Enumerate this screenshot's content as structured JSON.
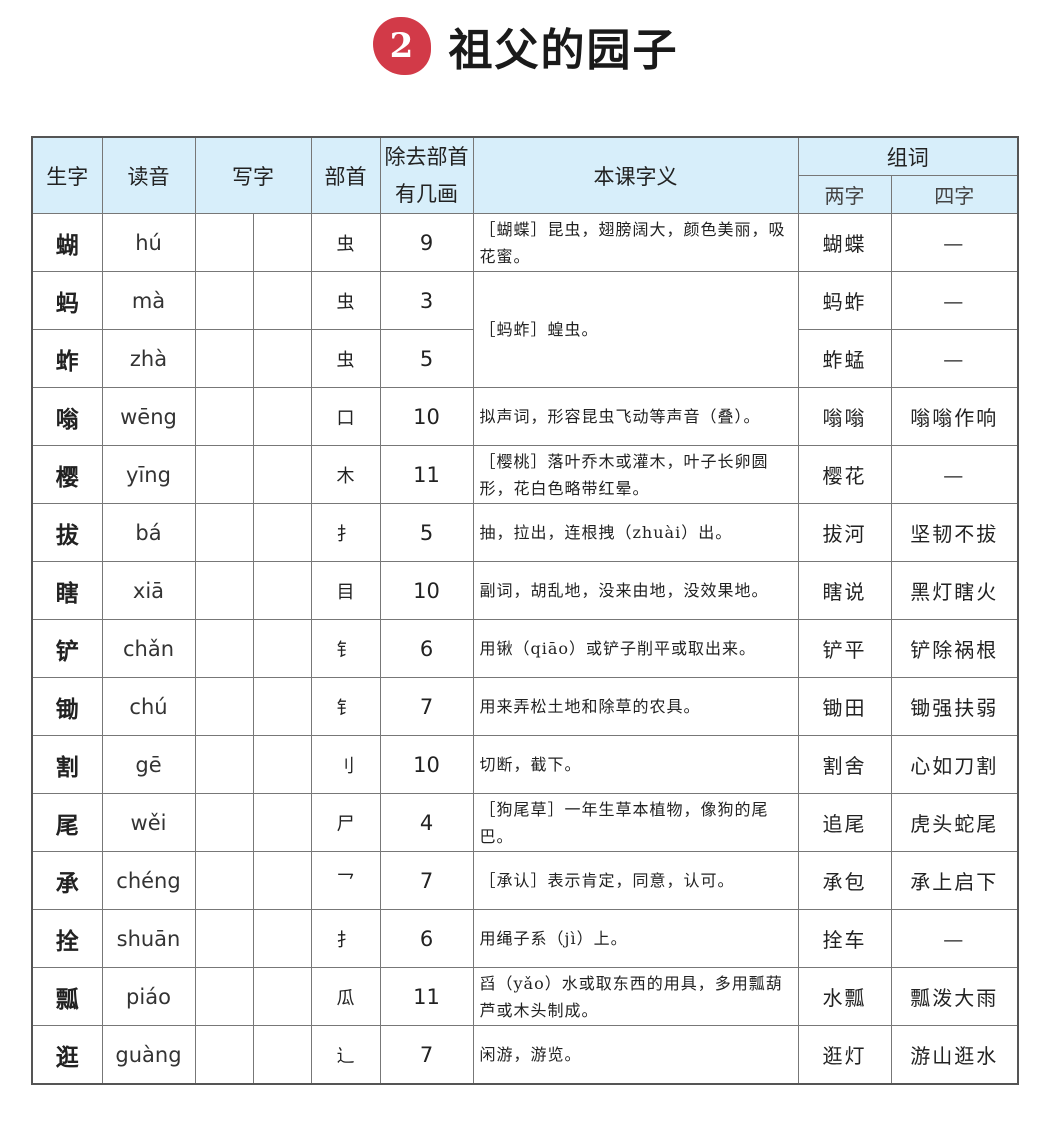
{
  "lesson": {
    "number": "2",
    "title": "祖父的园子"
  },
  "headers": {
    "char": "生字",
    "pinyin": "读音",
    "write": "写字",
    "radical": "部首",
    "strokes_line1": "除去部首",
    "strokes_line2": "有几画",
    "meaning": "本课字义",
    "words": "组词",
    "two": "两字",
    "four": "四字"
  },
  "rows": [
    {
      "char": "蝴",
      "pinyin": "hú",
      "radical": "虫",
      "strokes": "9",
      "meaning": "［蝴蝶］昆虫，翅膀阔大，颜色美丽，吸花蜜。",
      "two": "蝴蝶",
      "four": "—"
    },
    {
      "char": "蚂",
      "pinyin": "mà",
      "radical": "虫",
      "strokes": "3",
      "meaning": "［蚂蚱］蝗虫。",
      "meaning_rowspan": 2,
      "two": "蚂蚱",
      "four": "—"
    },
    {
      "char": "蚱",
      "pinyin": "zhà",
      "radical": "虫",
      "strokes": "5",
      "two": "蚱蜢",
      "four": "—"
    },
    {
      "char": "嗡",
      "pinyin": "wēng",
      "radical": "口",
      "strokes": "10",
      "meaning": "拟声词，形容昆虫飞动等声音（叠）。",
      "two": "嗡嗡",
      "four": "嗡嗡作响"
    },
    {
      "char": "樱",
      "pinyin": "yīng",
      "radical": "木",
      "strokes": "11",
      "meaning": "［樱桃］落叶乔木或灌木，叶子长卵圆形，花白色略带红晕。",
      "two": "樱花",
      "four": "—"
    },
    {
      "char": "拔",
      "pinyin": "bá",
      "radical": "扌",
      "strokes": "5",
      "meaning": "抽，拉出，连根拽（zhuài）出。",
      "two": "拔河",
      "four": "坚韧不拔"
    },
    {
      "char": "瞎",
      "pinyin": "xiā",
      "radical": "目",
      "strokes": "10",
      "meaning": "副词，胡乱地，没来由地，没效果地。",
      "two": "瞎说",
      "four": "黑灯瞎火"
    },
    {
      "char": "铲",
      "pinyin": "chǎn",
      "radical": "钅",
      "strokes": "6",
      "meaning": "用锹（qiāo）或铲子削平或取出来。",
      "two": "铲平",
      "four": "铲除祸根"
    },
    {
      "char": "锄",
      "pinyin": "chú",
      "radical": "钅",
      "strokes": "7",
      "meaning": "用来弄松土地和除草的农具。",
      "two": "锄田",
      "four": "锄强扶弱"
    },
    {
      "char": "割",
      "pinyin": "gē",
      "radical": "刂",
      "strokes": "10",
      "meaning": "切断，截下。",
      "two": "割舍",
      "four": "心如刀割"
    },
    {
      "char": "尾",
      "pinyin": "wěi",
      "radical": "尸",
      "strokes": "4",
      "meaning": "［狗尾草］一年生草本植物，像狗的尾巴。",
      "two": "追尾",
      "four": "虎头蛇尾"
    },
    {
      "char": "承",
      "pinyin": "chéng",
      "radical": "乛",
      "strokes": "7",
      "meaning": "［承认］表示肯定，同意，认可。",
      "two": "承包",
      "four": "承上启下"
    },
    {
      "char": "拴",
      "pinyin": "shuān",
      "radical": "扌",
      "strokes": "6",
      "meaning": "用绳子系（jì）上。",
      "two": "拴车",
      "four": "—"
    },
    {
      "char": "瓢",
      "pinyin": "piáo",
      "radical": "瓜",
      "strokes": "11",
      "meaning": "舀（yǎo）水或取东西的用具，多用瓢葫芦或木头制成。",
      "two": "水瓢",
      "four": "瓢泼大雨"
    },
    {
      "char": "逛",
      "pinyin": "guàng",
      "radical": "辶",
      "strokes": "7",
      "meaning": "闲游，游览。",
      "two": "逛灯",
      "four": "游山逛水"
    }
  ],
  "colors": {
    "header_bg": "#d7eefa",
    "badge": "#d23a48"
  }
}
